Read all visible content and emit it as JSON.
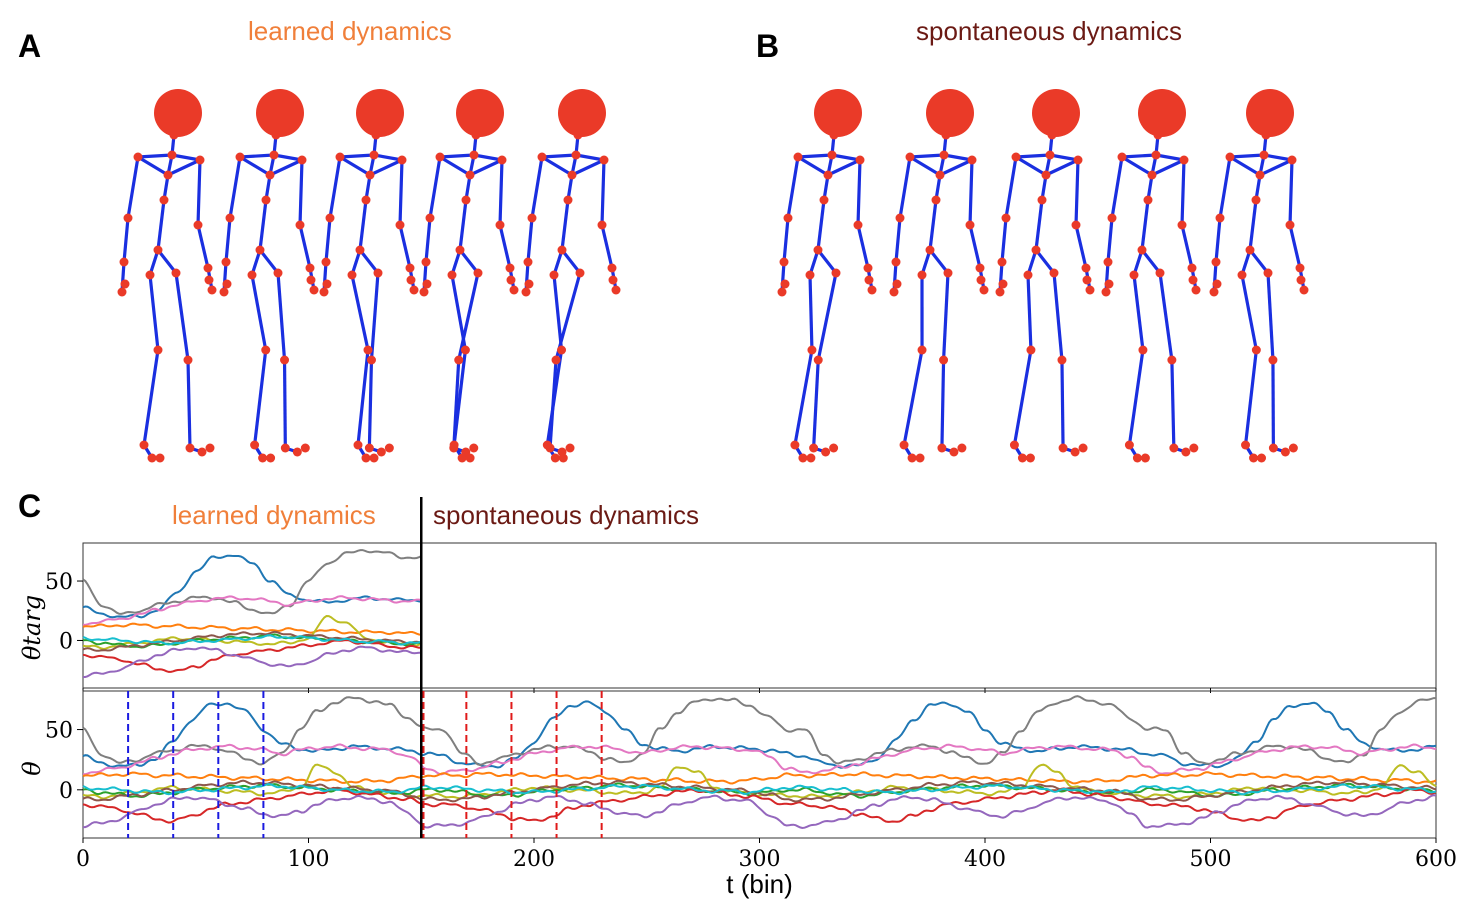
{
  "panels": {
    "a": {
      "letter": "A",
      "title": "learned dynamics"
    },
    "b": {
      "letter": "B",
      "title": "spontaneous dynamics"
    },
    "c": {
      "letter": "C",
      "title_left": "learned dynamics",
      "title_right": "spontaneous dynamics"
    }
  },
  "colors": {
    "learned": "#f07f3a",
    "spontaneous": "#6b1a14",
    "bone": "#1a2fe0",
    "joint": "#ea3a28"
  },
  "chart_data": [
    {
      "type": "line",
      "ylabel": "θtarg",
      "xlim": [
        0,
        600
      ],
      "ylim": [
        -40,
        82
      ],
      "yticks": [
        0,
        50
      ],
      "xmax_data": 150,
      "series": [
        {
          "color": "#1f77b4",
          "y": [
            28,
            22,
            20,
            20,
            26,
            40,
            58,
            70,
            72,
            65,
            50,
            38,
            34,
            32,
            34,
            36,
            35,
            34
          ]
        },
        {
          "color": "#7f7f7f",
          "y": [
            50,
            30,
            22,
            25,
            30,
            33,
            36,
            36,
            32,
            26,
            22,
            30,
            50,
            65,
            73,
            76,
            74,
            70
          ]
        },
        {
          "color": "#e377c2",
          "y": [
            14,
            16,
            18,
            22,
            26,
            30,
            33,
            35,
            36,
            35,
            33,
            30,
            33,
            35,
            36,
            35,
            34,
            33
          ]
        },
        {
          "color": "#ff7f0e",
          "y": [
            12,
            12,
            13,
            13,
            12,
            12,
            11,
            11,
            10,
            10,
            9,
            9,
            8,
            8,
            7,
            7,
            7,
            6
          ]
        },
        {
          "color": "#bcbd22",
          "y": [
            -5,
            -6,
            -4,
            -2,
            0,
            2,
            1,
            0,
            -1,
            -2,
            -3,
            -2,
            2,
            20,
            15,
            2,
            -1,
            -3
          ]
        },
        {
          "color": "#2ca02c",
          "y": [
            0,
            -2,
            -4,
            -5,
            -4,
            -2,
            0,
            1,
            2,
            3,
            4,
            3,
            2,
            1,
            0,
            -1,
            -2,
            -3
          ]
        },
        {
          "color": "#d62728",
          "y": [
            -12,
            -14,
            -16,
            -20,
            -24,
            -26,
            -22,
            -16,
            -12,
            -10,
            -8,
            -6,
            -4,
            -2,
            0,
            -2,
            -4,
            -6
          ]
        },
        {
          "color": "#9467bd",
          "y": [
            -30,
            -28,
            -24,
            -18,
            -12,
            -8,
            -6,
            -8,
            -12,
            -16,
            -20,
            -22,
            -18,
            -12,
            -8,
            -6,
            -8,
            -10
          ]
        },
        {
          "color": "#8c564b",
          "y": [
            -8,
            -8,
            -6,
            -4,
            -2,
            0,
            2,
            4,
            5,
            6,
            6,
            5,
            4,
            3,
            2,
            1,
            0,
            -1
          ]
        },
        {
          "color": "#17becf",
          "y": [
            2,
            1,
            0,
            -1,
            -2,
            -2,
            -1,
            0,
            1,
            2,
            3,
            3,
            2,
            1,
            0,
            -1,
            -1,
            -2
          ]
        }
      ]
    },
    {
      "type": "line",
      "ylabel": "θ",
      "xlabel": "t (bin)",
      "xlim": [
        0,
        600
      ],
      "ylim": [
        -40,
        82
      ],
      "xticks": [
        0,
        100,
        200,
        300,
        400,
        500,
        600
      ],
      "yticks": [
        0,
        50
      ],
      "divider_x": 150,
      "blue_vlines": [
        20,
        40,
        60,
        80
      ],
      "red_vlines": [
        151,
        170,
        190,
        210,
        230
      ],
      "series_periodic": [
        {
          "color": "#1f77b4",
          "period": 160,
          "shape": [
            28,
            22,
            20,
            20,
            26,
            40,
            58,
            70,
            72,
            65,
            50,
            38,
            34,
            32,
            34,
            36,
            35,
            34,
            33,
            30
          ]
        },
        {
          "color": "#7f7f7f",
          "period": 160,
          "shape": [
            50,
            30,
            22,
            25,
            30,
            33,
            36,
            36,
            32,
            26,
            22,
            30,
            50,
            65,
            73,
            76,
            74,
            70,
            60,
            50
          ]
        },
        {
          "color": "#e377c2",
          "period": 160,
          "shape": [
            14,
            16,
            18,
            22,
            26,
            30,
            33,
            35,
            36,
            35,
            33,
            30,
            33,
            35,
            36,
            35,
            34,
            33,
            28,
            18
          ]
        },
        {
          "color": "#ff7f0e",
          "period": 160,
          "shape": [
            12,
            12,
            13,
            13,
            12,
            12,
            11,
            11,
            10,
            10,
            9,
            9,
            8,
            8,
            7,
            7,
            7,
            8,
            10,
            12
          ]
        },
        {
          "color": "#bcbd22",
          "period": 160,
          "shape": [
            -5,
            -6,
            -4,
            -2,
            0,
            2,
            1,
            0,
            -1,
            -2,
            -3,
            -2,
            2,
            20,
            15,
            2,
            -1,
            -3,
            -4,
            -5
          ]
        },
        {
          "color": "#2ca02c",
          "period": 160,
          "shape": [
            0,
            -2,
            -4,
            -5,
            -4,
            -2,
            0,
            1,
            2,
            3,
            4,
            3,
            2,
            1,
            0,
            -1,
            -2,
            -3,
            -2,
            0
          ]
        },
        {
          "color": "#d62728",
          "period": 160,
          "shape": [
            -12,
            -14,
            -16,
            -20,
            -24,
            -26,
            -22,
            -16,
            -12,
            -10,
            -8,
            -6,
            -4,
            -2,
            0,
            -2,
            -4,
            -6,
            -8,
            -12
          ]
        },
        {
          "color": "#9467bd",
          "period": 160,
          "shape": [
            -30,
            -28,
            -24,
            -18,
            -12,
            -8,
            -6,
            -8,
            -12,
            -16,
            -20,
            -22,
            -18,
            -12,
            -8,
            -6,
            -8,
            -10,
            -20,
            -30
          ]
        },
        {
          "color": "#8c564b",
          "period": 160,
          "shape": [
            -8,
            -8,
            -6,
            -4,
            -2,
            0,
            2,
            4,
            5,
            6,
            6,
            5,
            4,
            3,
            2,
            1,
            0,
            -1,
            -4,
            -8
          ]
        },
        {
          "color": "#17becf",
          "period": 160,
          "shape": [
            2,
            1,
            0,
            -1,
            -2,
            -2,
            -1,
            0,
            1,
            2,
            3,
            3,
            2,
            1,
            0,
            -1,
            -1,
            -2,
            0,
            2
          ]
        }
      ]
    }
  ]
}
